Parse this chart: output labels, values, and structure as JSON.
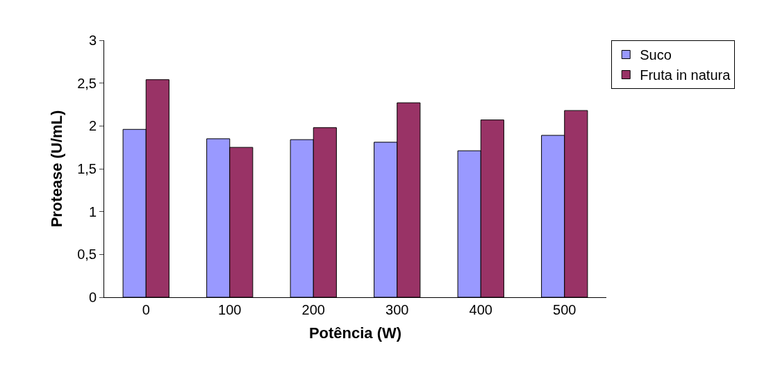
{
  "chart_data": {
    "type": "bar",
    "xlabel": "Potência (W)",
    "ylabel": "Protease (U/mL)",
    "categories": [
      "0",
      "100",
      "200",
      "300",
      "400",
      "500"
    ],
    "series": [
      {
        "name": "Suco",
        "color": "#9999ff",
        "values": [
          1.96,
          1.85,
          1.84,
          1.81,
          1.71,
          1.89
        ]
      },
      {
        "name": "Fruta in natura",
        "color": "#993366",
        "values": [
          2.54,
          1.75,
          1.98,
          2.27,
          2.07,
          2.18
        ]
      }
    ],
    "ylim": [
      0,
      3
    ],
    "yticks": [
      0,
      {
        "value": 0.5,
        "label": "0,5"
      },
      1,
      {
        "value": 1.5,
        "label": "1,5"
      },
      2,
      {
        "value": 2.5,
        "label": "2,5"
      },
      3
    ],
    "grid": false,
    "legend": "top right"
  }
}
